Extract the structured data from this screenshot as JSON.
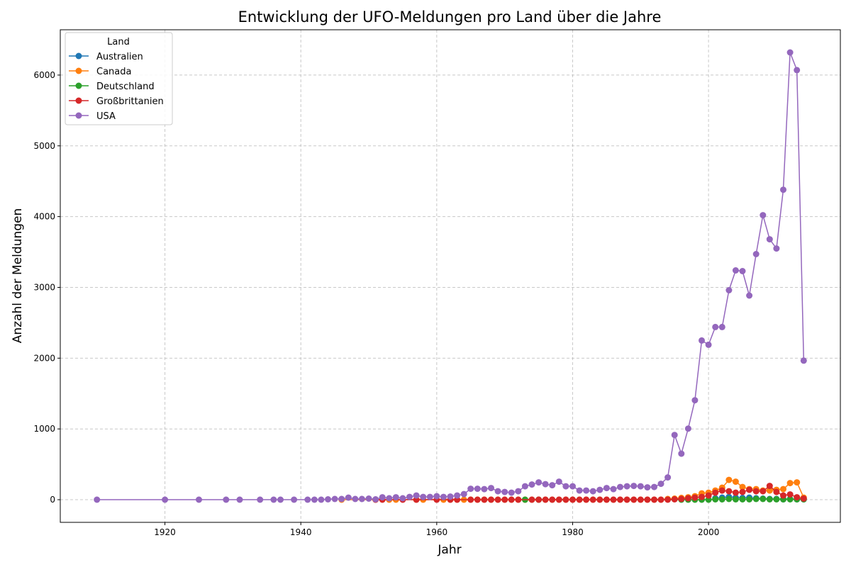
{
  "chart_data": {
    "type": "line",
    "title": "Entwicklung der UFO-Meldungen pro Land über die Jahre",
    "xlabel": "Jahr",
    "ylabel": "Anzahl der Meldungen",
    "xlim": [
      1904.6,
      2019.4
    ],
    "ylim": [
      -320,
      6640
    ],
    "xticks": [
      1920,
      1940,
      1960,
      1980,
      2000
    ],
    "yticks": [
      0,
      1000,
      2000,
      3000,
      4000,
      5000,
      6000
    ],
    "grid": true,
    "legend_title": "Land",
    "legend_position": "top-left",
    "series": [
      {
        "name": "Australien",
        "color": "#1f77b4",
        "points": [
          [
            2001,
            20
          ],
          [
            2002,
            30
          ],
          [
            2003,
            40
          ],
          [
            2004,
            30
          ],
          [
            2005,
            25
          ],
          [
            2006,
            30
          ],
          [
            2007,
            20
          ],
          [
            2008,
            15
          ],
          [
            2009,
            10
          ],
          [
            2010,
            10
          ],
          [
            2011,
            5
          ],
          [
            2012,
            10
          ],
          [
            2013,
            5
          ],
          [
            2014,
            5
          ]
        ]
      },
      {
        "name": "Canada",
        "color": "#ff7f0e",
        "points": [
          [
            1946,
            0
          ],
          [
            1951,
            0
          ],
          [
            1953,
            0
          ],
          [
            1954,
            0
          ],
          [
            1957,
            0
          ],
          [
            1958,
            0
          ],
          [
            1961,
            0
          ],
          [
            1962,
            0
          ],
          [
            1963,
            0
          ],
          [
            1964,
            0
          ],
          [
            1965,
            0
          ],
          [
            1966,
            0
          ],
          [
            1967,
            0
          ],
          [
            1968,
            0
          ],
          [
            1969,
            0
          ],
          [
            1970,
            0
          ],
          [
            1971,
            0
          ],
          [
            1972,
            0
          ],
          [
            1973,
            0
          ],
          [
            1974,
            0
          ],
          [
            1975,
            0
          ],
          [
            1976,
            0
          ],
          [
            1977,
            0
          ],
          [
            1978,
            0
          ],
          [
            1979,
            0
          ],
          [
            1980,
            0
          ],
          [
            1981,
            0
          ],
          [
            1982,
            0
          ],
          [
            1983,
            0
          ],
          [
            1984,
            0
          ],
          [
            1985,
            0
          ],
          [
            1986,
            0
          ],
          [
            1987,
            0
          ],
          [
            1988,
            0
          ],
          [
            1989,
            0
          ],
          [
            1990,
            0
          ],
          [
            1991,
            0
          ],
          [
            1992,
            0
          ],
          [
            1993,
            0
          ],
          [
            1994,
            10
          ],
          [
            1995,
            15
          ],
          [
            1996,
            25
          ],
          [
            1997,
            35
          ],
          [
            1998,
            50
          ],
          [
            1999,
            90
          ],
          [
            2000,
            100
          ],
          [
            2001,
            130
          ],
          [
            2002,
            170
          ],
          [
            2003,
            280
          ],
          [
            2004,
            255
          ],
          [
            2005,
            180
          ],
          [
            2006,
            150
          ],
          [
            2007,
            150
          ],
          [
            2008,
            130
          ],
          [
            2009,
            130
          ],
          [
            2010,
            140
          ],
          [
            2011,
            150
          ],
          [
            2012,
            235
          ],
          [
            2013,
            245
          ],
          [
            2014,
            30
          ]
        ]
      },
      {
        "name": "Deutschland",
        "color": "#2ca02c",
        "points": [
          [
            1973,
            0
          ],
          [
            1975,
            0
          ],
          [
            1996,
            0
          ],
          [
            1997,
            0
          ],
          [
            1998,
            0
          ],
          [
            1999,
            0
          ],
          [
            2000,
            0
          ],
          [
            2001,
            5
          ],
          [
            2002,
            5
          ],
          [
            2003,
            10
          ],
          [
            2004,
            5
          ],
          [
            2005,
            5
          ],
          [
            2006,
            5
          ],
          [
            2007,
            10
          ],
          [
            2008,
            10
          ],
          [
            2009,
            5
          ],
          [
            2010,
            5
          ],
          [
            2011,
            5
          ],
          [
            2012,
            5
          ],
          [
            2013,
            5
          ],
          [
            2014,
            5
          ]
        ]
      },
      {
        "name": "Großbrittanien",
        "color": "#d62728",
        "points": [
          [
            1951,
            0
          ],
          [
            1952,
            0
          ],
          [
            1955,
            0
          ],
          [
            1957,
            0
          ],
          [
            1960,
            0
          ],
          [
            1962,
            0
          ],
          [
            1963,
            0
          ],
          [
            1965,
            0
          ],
          [
            1966,
            0
          ],
          [
            1967,
            0
          ],
          [
            1968,
            0
          ],
          [
            1969,
            0
          ],
          [
            1970,
            0
          ],
          [
            1971,
            0
          ],
          [
            1972,
            0
          ],
          [
            1974,
            0
          ],
          [
            1975,
            0
          ],
          [
            1976,
            0
          ],
          [
            1977,
            0
          ],
          [
            1978,
            0
          ],
          [
            1979,
            0
          ],
          [
            1980,
            0
          ],
          [
            1981,
            0
          ],
          [
            1982,
            0
          ],
          [
            1983,
            0
          ],
          [
            1984,
            0
          ],
          [
            1985,
            0
          ],
          [
            1986,
            0
          ],
          [
            1987,
            0
          ],
          [
            1988,
            0
          ],
          [
            1989,
            0
          ],
          [
            1990,
            0
          ],
          [
            1991,
            0
          ],
          [
            1992,
            0
          ],
          [
            1993,
            0
          ],
          [
            1994,
            0
          ],
          [
            1995,
            5
          ],
          [
            1996,
            10
          ],
          [
            1997,
            20
          ],
          [
            1998,
            30
          ],
          [
            1999,
            40
          ],
          [
            2000,
            60
          ],
          [
            2001,
            100
          ],
          [
            2002,
            130
          ],
          [
            2003,
            120
          ],
          [
            2004,
            100
          ],
          [
            2005,
            110
          ],
          [
            2006,
            140
          ],
          [
            2007,
            120
          ],
          [
            2008,
            120
          ],
          [
            2009,
            195
          ],
          [
            2010,
            110
          ],
          [
            2011,
            60
          ],
          [
            2012,
            75
          ],
          [
            2013,
            35
          ],
          [
            2014,
            15
          ]
        ]
      },
      {
        "name": "USA",
        "color": "#9467bd",
        "points": [
          [
            1910,
            0
          ],
          [
            1920,
            0
          ],
          [
            1925,
            0
          ],
          [
            1929,
            0
          ],
          [
            1931,
            0
          ],
          [
            1934,
            0
          ],
          [
            1936,
            0
          ],
          [
            1937,
            0
          ],
          [
            1939,
            0
          ],
          [
            1941,
            0
          ],
          [
            1942,
            0
          ],
          [
            1943,
            0
          ],
          [
            1944,
            5
          ],
          [
            1945,
            10
          ],
          [
            1946,
            10
          ],
          [
            1947,
            30
          ],
          [
            1948,
            10
          ],
          [
            1949,
            10
          ],
          [
            1950,
            15
          ],
          [
            1951,
            5
          ],
          [
            1952,
            35
          ],
          [
            1953,
            20
          ],
          [
            1954,
            35
          ],
          [
            1955,
            20
          ],
          [
            1956,
            40
          ],
          [
            1957,
            60
          ],
          [
            1958,
            40
          ],
          [
            1959,
            40
          ],
          [
            1960,
            50
          ],
          [
            1961,
            40
          ],
          [
            1962,
            45
          ],
          [
            1963,
            60
          ],
          [
            1964,
            80
          ],
          [
            1965,
            155
          ],
          [
            1966,
            155
          ],
          [
            1967,
            150
          ],
          [
            1968,
            165
          ],
          [
            1969,
            120
          ],
          [
            1970,
            110
          ],
          [
            1971,
            100
          ],
          [
            1972,
            120
          ],
          [
            1973,
            190
          ],
          [
            1974,
            215
          ],
          [
            1975,
            245
          ],
          [
            1976,
            220
          ],
          [
            1977,
            205
          ],
          [
            1978,
            255
          ],
          [
            1979,
            190
          ],
          [
            1980,
            190
          ],
          [
            1981,
            130
          ],
          [
            1982,
            130
          ],
          [
            1983,
            120
          ],
          [
            1984,
            140
          ],
          [
            1985,
            165
          ],
          [
            1986,
            150
          ],
          [
            1987,
            180
          ],
          [
            1988,
            190
          ],
          [
            1989,
            195
          ],
          [
            1990,
            190
          ],
          [
            1991,
            175
          ],
          [
            1992,
            180
          ],
          [
            1993,
            225
          ],
          [
            1994,
            315
          ],
          [
            1995,
            915
          ],
          [
            1996,
            650
          ],
          [
            1997,
            1005
          ],
          [
            1998,
            1405
          ],
          [
            1999,
            2250
          ],
          [
            2000,
            2190
          ],
          [
            2001,
            2440
          ],
          [
            2002,
            2440
          ],
          [
            2003,
            2960
          ],
          [
            2004,
            3240
          ],
          [
            2005,
            3230
          ],
          [
            2006,
            2885
          ],
          [
            2007,
            3470
          ],
          [
            2008,
            4020
          ],
          [
            2009,
            3680
          ],
          [
            2010,
            3550
          ],
          [
            2011,
            4380
          ],
          [
            2012,
            6320
          ],
          [
            2013,
            6070
          ],
          [
            2014,
            1965
          ]
        ]
      }
    ]
  }
}
